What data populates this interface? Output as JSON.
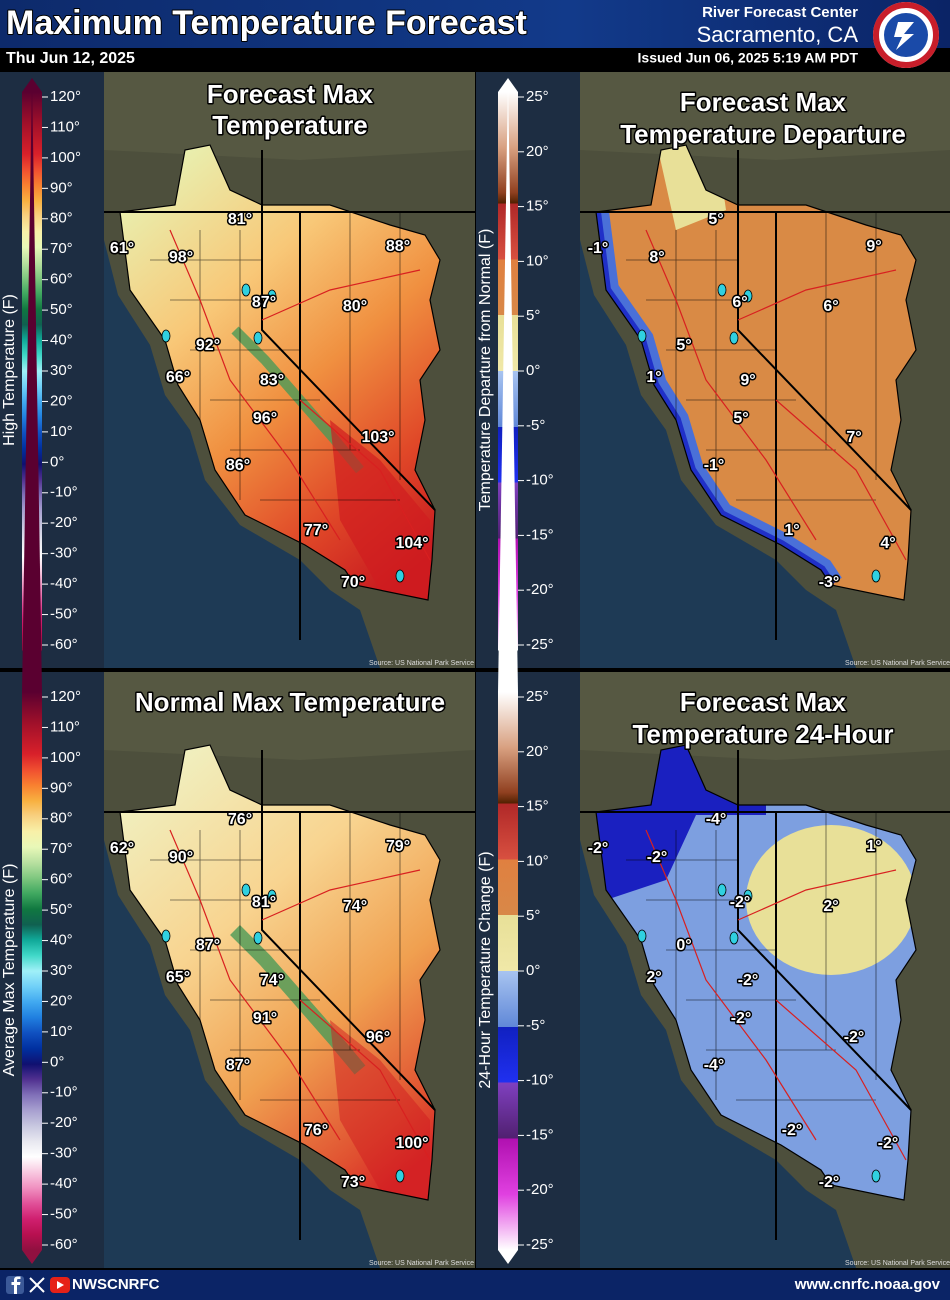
{
  "header": {
    "title": "Maximum Temperature Forecast",
    "date": "Thu Jun 12, 2025",
    "office": "River Forecast Center",
    "location": "Sacramento, CA",
    "issued": "Issued Jun 06, 2025 5:19 AM PDT"
  },
  "panels": [
    {
      "title": [
        "Forecast Max",
        "Temperature"
      ],
      "legend": {
        "label": "High Temperature (F)",
        "ticks": [
          "120°",
          "110°",
          "100°",
          "90°",
          "80°",
          "70°",
          "60°",
          "50°",
          "40°",
          "30°",
          "20°",
          "10°",
          "0°",
          "-10°",
          "-20°",
          "-30°",
          "-40°",
          "-50°",
          "-60°"
        ]
      },
      "points": [
        "61°",
        "98°",
        "81°",
        "88°",
        "87°",
        "80°",
        "92°",
        "66°",
        "83°",
        "96°",
        "103°",
        "86°",
        "77°",
        "104°",
        "70°"
      ],
      "source": "Source: US National Park Service"
    },
    {
      "title": [
        "Forecast Max",
        "Temperature Departure"
      ],
      "legend": {
        "label": "Temperature Departure from Normal (F)",
        "ticks": [
          "25°",
          "20°",
          "15°",
          "10°",
          "5°",
          "0°",
          "-5°",
          "-10°",
          "-15°",
          "-20°",
          "-25°"
        ]
      },
      "points": [
        "-1°",
        "8°",
        "5°",
        "9°",
        "6°",
        "6°",
        "5°",
        "1°",
        "9°",
        "5°",
        "7°",
        "-1°",
        "1°",
        "4°",
        "-3°"
      ],
      "source": "Source: US National Park Service"
    },
    {
      "title": [
        "Normal Max Temperature"
      ],
      "legend": {
        "label": "Average Max Temperature (F)",
        "ticks": [
          "120°",
          "110°",
          "100°",
          "90°",
          "80°",
          "70°",
          "60°",
          "50°",
          "40°",
          "30°",
          "20°",
          "10°",
          "0°",
          "-10°",
          "-20°",
          "-30°",
          "-40°",
          "-50°",
          "-60°"
        ]
      },
      "points": [
        "62°",
        "90°",
        "76°",
        "79°",
        "81°",
        "74°",
        "87°",
        "65°",
        "74°",
        "91°",
        "96°",
        "87°",
        "76°",
        "100°",
        "73°"
      ],
      "source": "Source: US National Park Service"
    },
    {
      "title": [
        "Forecast Max",
        "Temperature 24-Hour"
      ],
      "legend": {
        "label": "24-Hour Temperature Change (F)",
        "ticks": [
          "25°",
          "20°",
          "15°",
          "10°",
          "5°",
          "0°",
          "-5°",
          "-10°",
          "-15°",
          "-20°",
          "-25°"
        ]
      },
      "points": [
        "-2°",
        "-2°",
        "-4°",
        "1°",
        "-2°",
        "2°",
        "0°",
        "2°",
        "-2°",
        "-2°",
        "-2°",
        "-4°",
        "-2°",
        "-2°",
        "-2°"
      ],
      "source": "Source: US National Park Service"
    }
  ],
  "footer": {
    "handle": "NWSCNRFC",
    "url": "www.cnrfc.noaa.gov"
  }
}
